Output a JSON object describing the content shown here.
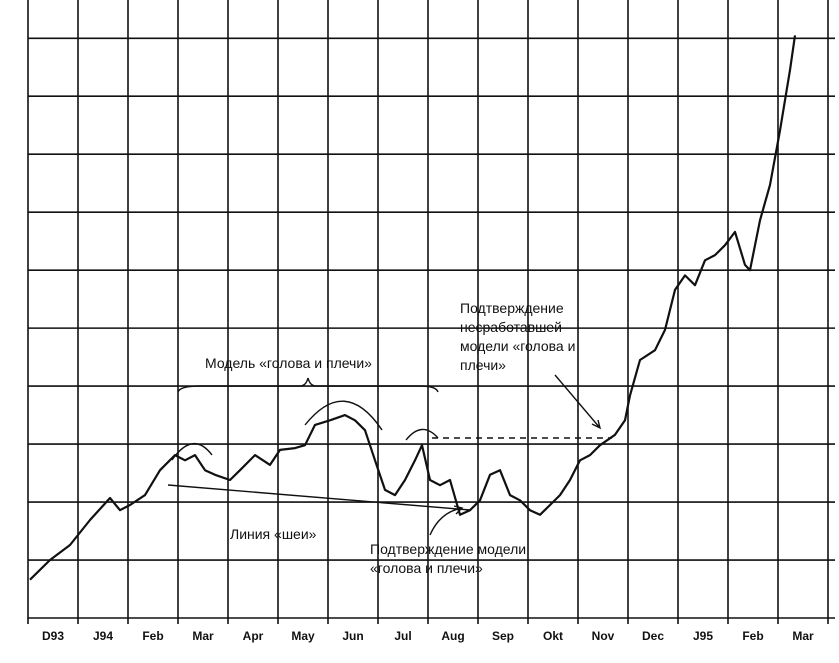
{
  "chart_data": {
    "type": "line",
    "categories": [
      "D93",
      "J94",
      "Feb",
      "Mar",
      "Apr",
      "May",
      "Jun",
      "Jul",
      "Aug",
      "Sep",
      "Okt",
      "Nov",
      "Dec",
      "J95",
      "Feb",
      "Mar"
    ],
    "x": [
      0.04,
      0.44,
      0.84,
      1.24,
      1.64,
      1.84,
      2.04,
      2.34,
      2.64,
      2.94,
      3.14,
      3.34,
      3.54,
      3.74,
      4.04,
      4.24,
      4.54,
      4.84,
      5.04,
      5.34,
      5.54,
      5.74,
      6.04,
      6.34,
      6.54,
      6.74,
      6.94,
      7.14,
      7.34,
      7.54,
      7.74,
      7.88,
      8.04,
      8.24,
      8.44,
      8.64,
      8.84,
      9.04,
      9.24,
      9.44,
      9.64,
      9.84,
      10.04,
      10.24,
      10.44,
      10.64,
      10.84,
      11.04,
      11.24,
      11.44,
      11.74,
      11.94,
      12.04,
      12.24,
      12.54,
      12.74,
      12.94,
      13.14,
      13.34,
      13.54,
      13.74,
      13.94,
      14.14,
      14.34,
      14.44,
      14.64,
      14.84,
      15.04,
      15.24,
      15.34
    ],
    "values": [
      0.66,
      1.0,
      1.26,
      1.69,
      2.07,
      1.86,
      1.95,
      2.12,
      2.55,
      2.81,
      2.72,
      2.81,
      2.55,
      2.47,
      2.38,
      2.55,
      2.81,
      2.64,
      2.9,
      2.93,
      2.98,
      3.33,
      3.41,
      3.5,
      3.41,
      3.24,
      2.72,
      2.21,
      2.12,
      2.38,
      2.72,
      2.98,
      2.38,
      2.29,
      2.38,
      1.78,
      1.86,
      2.03,
      2.47,
      2.55,
      2.12,
      2.03,
      1.86,
      1.78,
      1.95,
      2.12,
      2.38,
      2.72,
      2.81,
      2.98,
      3.16,
      3.41,
      3.84,
      4.45,
      4.62,
      4.97,
      5.66,
      5.91,
      5.74,
      6.17,
      6.26,
      6.43,
      6.66,
      6.09,
      6.0,
      6.86,
      7.47,
      8.41,
      9.45,
      10.05
    ],
    "color": "#111111",
    "xlim": [
      0,
      16
    ],
    "xticks": [
      0,
      1,
      2,
      3,
      4,
      5,
      6,
      7,
      8,
      9,
      10,
      11,
      12,
      13,
      14,
      15,
      16
    ],
    "ylim": [
      0,
      10.66
    ],
    "yticks": [
      1,
      2,
      3,
      4,
      5,
      6,
      7,
      8,
      9,
      10
    ],
    "grid": true,
    "annotations": {
      "pattern": "Модель «голова и плечи»",
      "neckline": "Линия «шеи»",
      "confirm": [
        "Подтверждение модели",
        "«голова и плечи»"
      ],
      "failed": [
        "Подтверждение",
        "несработавшей",
        "модели «голова и",
        "плечи»"
      ]
    }
  }
}
